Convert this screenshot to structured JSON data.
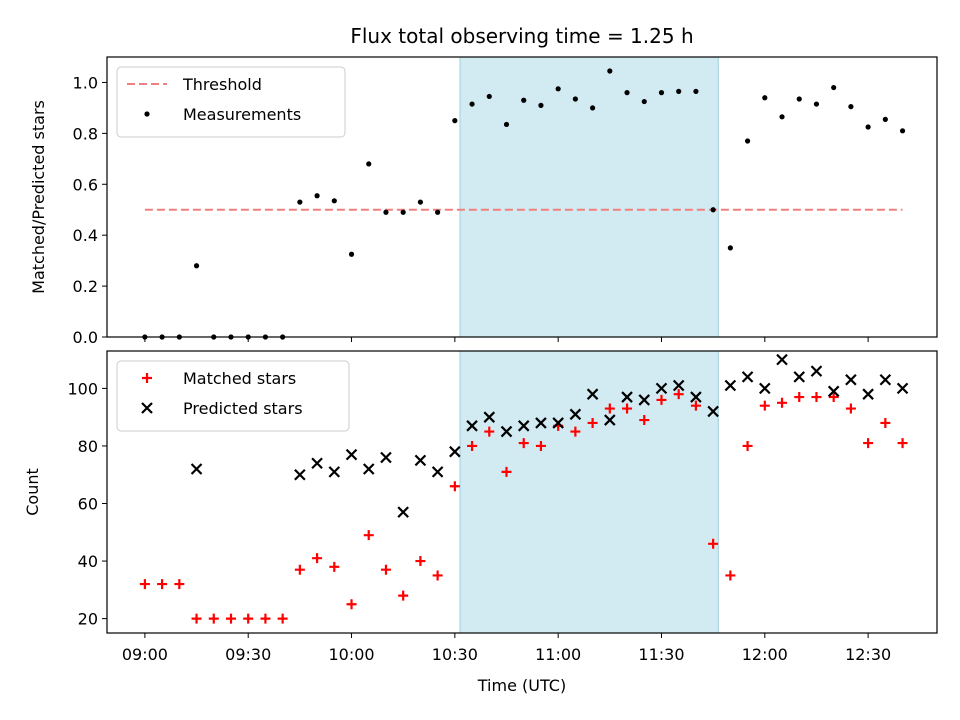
{
  "chart_data": {
    "title": "Flux total observing time = 1.25 h",
    "xlabel": "Time (UTC)",
    "x_tick_labels": [
      "09:00",
      "09:30",
      "10:00",
      "10:30",
      "11:00",
      "11:30",
      "12:00",
      "12:30"
    ],
    "x_ticks_minutes": [
      0,
      30,
      60,
      90,
      120,
      150,
      180,
      210
    ],
    "xlim_minutes_after_0900": [
      -11,
      230
    ],
    "highlight_span_minutes": [
      91.5,
      166.5
    ],
    "highlight_color": "#add8e6",
    "panels": [
      {
        "type": "scatter",
        "ylabel": "Matched/Predicted stars",
        "ylim": [
          0,
          1.1
        ],
        "yticks": [
          0.0,
          0.2,
          0.4,
          0.6,
          0.8,
          1.0
        ],
        "y_tick_labels": [
          "0.0",
          "0.2",
          "0.4",
          "0.6",
          "0.8",
          "1.0"
        ],
        "legend_position": "top-left",
        "threshold": {
          "name": "Threshold",
          "value": 0.5,
          "x_range": [
            0,
            220
          ],
          "color": "#f08080"
        },
        "series": [
          {
            "name": "Measurements",
            "marker": "dot",
            "color": "#000000",
            "x": [
              0,
              5,
              10,
              15,
              20,
              25,
              30,
              35,
              40,
              45,
              50,
              55,
              60,
              65,
              70,
              75,
              80,
              85,
              90,
              95,
              100,
              105,
              110,
              115,
              120,
              125,
              130,
              135,
              140,
              145,
              150,
              155,
              160,
              165,
              170,
              175,
              180,
              185,
              190,
              195,
              200,
              205,
              210,
              215,
              220
            ],
            "y": [
              0.0,
              0.0,
              0.0,
              0.28,
              0.0,
              0.0,
              0.0,
              0.0,
              0.0,
              0.53,
              0.555,
              0.535,
              0.325,
              0.68,
              0.49,
              0.49,
              0.53,
              0.49,
              0.85,
              0.915,
              0.945,
              0.835,
              0.93,
              0.91,
              0.975,
              0.935,
              0.9,
              1.045,
              0.96,
              0.925,
              0.96,
              0.965,
              0.965,
              0.5,
              0.35,
              0.77,
              0.94,
              0.865,
              0.935,
              0.915,
              0.98,
              0.905,
              0.825,
              0.855,
              0.81
            ]
          }
        ]
      },
      {
        "type": "scatter",
        "ylabel": "Count",
        "ylim": [
          15,
          113
        ],
        "yticks": [
          20,
          40,
          60,
          80,
          100
        ],
        "y_tick_labels": [
          "20",
          "40",
          "60",
          "80",
          "100"
        ],
        "legend_position": "top-left",
        "series": [
          {
            "name": "Matched stars",
            "marker": "plus",
            "color": "#ff0000",
            "x": [
              0,
              5,
              10,
              15,
              20,
              25,
              30,
              35,
              40,
              45,
              50,
              55,
              60,
              65,
              70,
              75,
              80,
              85,
              90,
              95,
              100,
              105,
              110,
              115,
              120,
              125,
              130,
              135,
              140,
              145,
              150,
              155,
              160,
              165,
              170,
              175,
              180,
              185,
              190,
              195,
              200,
              205,
              210,
              215,
              220
            ],
            "y": [
              32,
              32,
              32,
              20,
              20,
              20,
              20,
              20,
              20,
              37,
              41,
              38,
              25,
              49,
              37,
              28,
              40,
              35,
              66,
              80,
              85,
              71,
              81,
              80,
              87,
              85,
              88,
              93,
              93,
              89,
              96,
              98,
              94,
              46,
              35,
              80,
              94,
              95,
              97,
              97,
              97,
              93,
              81,
              88,
              81
            ]
          },
          {
            "name": "Predicted stars",
            "marker": "x",
            "color": "#000000",
            "x": [
              15,
              45,
              50,
              55,
              60,
              65,
              70,
              75,
              80,
              85,
              90,
              95,
              100,
              105,
              110,
              115,
              120,
              125,
              130,
              135,
              140,
              145,
              150,
              155,
              160,
              165,
              170,
              175,
              180,
              185,
              190,
              195,
              200,
              205,
              210,
              215,
              220
            ],
            "y": [
              72,
              70,
              74,
              71,
              77,
              72,
              76,
              57,
              75,
              71,
              78,
              87,
              90,
              85,
              87,
              88,
              88,
              91,
              98,
              89,
              97,
              96,
              100,
              101,
              97,
              92,
              101,
              104,
              100,
              110,
              104,
              106,
              99,
              103,
              98,
              103,
              100
            ]
          }
        ]
      }
    ]
  }
}
